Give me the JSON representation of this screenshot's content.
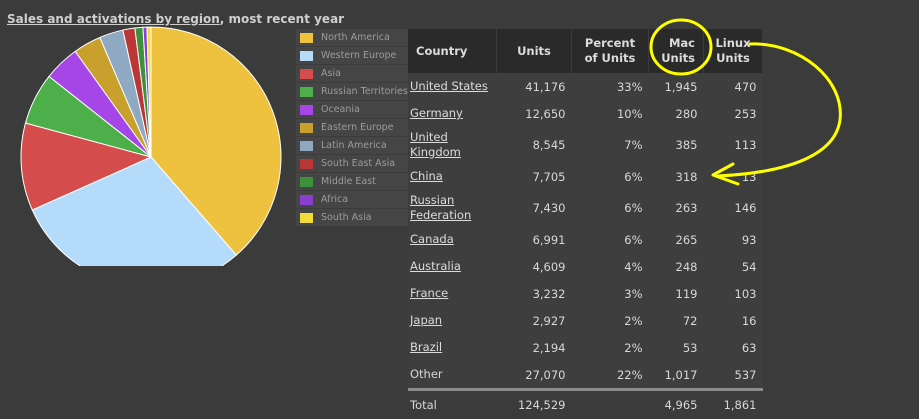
{
  "title": {
    "link_text": "Sales and activations by region",
    "rest_text": ", most recent year"
  },
  "chart_data": {
    "type": "pie",
    "categories": [
      "North America",
      "Western Europe",
      "Asia",
      "Russian Territories",
      "Oceania",
      "Eastern Europe",
      "Latin America",
      "South East Asia",
      "Middle East",
      "Africa",
      "South Asia"
    ],
    "values": [
      39,
      30,
      11,
      6.5,
      4.5,
      3.5,
      3,
      1.5,
      1,
      0.5,
      0.5
    ],
    "colors": [
      "#eec23f",
      "#b4dcfa",
      "#d54c4c",
      "#4caf4a",
      "#a646e6",
      "#c99f2e",
      "#8fa9c2",
      "#bb3636",
      "#3d913b",
      "#8a3fd0",
      "#f2dc3c"
    ]
  },
  "table": {
    "headers": [
      "Country",
      "Units",
      "Percent of Units",
      "Mac Units",
      "Linux Units"
    ],
    "rows": [
      {
        "country": "United States",
        "units": "41,176",
        "pct": "33%",
        "mac": "1,945",
        "linux": "470",
        "link": true
      },
      {
        "country": "Germany",
        "units": "12,650",
        "pct": "10%",
        "mac": "280",
        "linux": "253",
        "link": true
      },
      {
        "country": "United Kingdom",
        "units": "8,545",
        "pct": "7%",
        "mac": "385",
        "linux": "113",
        "link": true
      },
      {
        "country": "China",
        "units": "7,705",
        "pct": "6%",
        "mac": "318",
        "linux": "13",
        "link": true
      },
      {
        "country": "Russian Federation",
        "units": "7,430",
        "pct": "6%",
        "mac": "263",
        "linux": "146",
        "link": true
      },
      {
        "country": "Canada",
        "units": "6,991",
        "pct": "6%",
        "mac": "265",
        "linux": "93",
        "link": true
      },
      {
        "country": "Australia",
        "units": "4,609",
        "pct": "4%",
        "mac": "248",
        "linux": "54",
        "link": true
      },
      {
        "country": "France",
        "units": "3,232",
        "pct": "3%",
        "mac": "119",
        "linux": "103",
        "link": true
      },
      {
        "country": "Japan",
        "units": "2,927",
        "pct": "2%",
        "mac": "72",
        "linux": "16",
        "link": true
      },
      {
        "country": "Brazil",
        "units": "2,194",
        "pct": "2%",
        "mac": "53",
        "linux": "63",
        "link": true
      },
      {
        "country": "Other",
        "units": "27,070",
        "pct": "22%",
        "mac": "1,017",
        "linux": "537",
        "link": false
      }
    ],
    "total": {
      "label": "Total",
      "units": "124,529",
      "pct": "",
      "mac": "4,965",
      "linux": "1,861"
    }
  },
  "annotation": {
    "color": "#ffff00"
  }
}
